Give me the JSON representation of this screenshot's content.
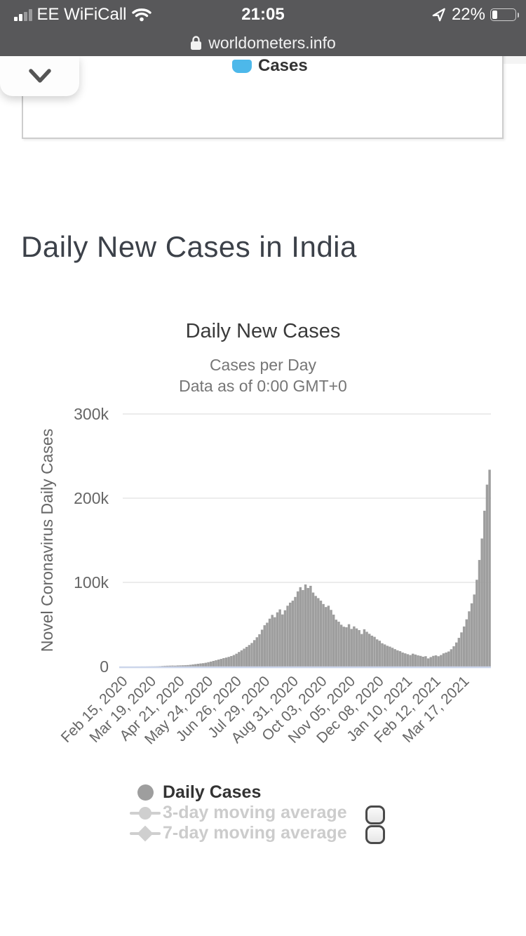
{
  "status_bar": {
    "carrier": "EE WiFiCall",
    "time": "21:05",
    "battery_text": "22%",
    "battery_level": 0.22,
    "bg_color": "#58585a"
  },
  "url_bar": {
    "domain": "worldometers.info"
  },
  "top_panel": {
    "legend_label": "Cases",
    "accent_color": "#4db8ea"
  },
  "page": {
    "heading": "Daily New Cases in India"
  },
  "chart_data": {
    "type": "bar",
    "title": "Daily New Cases",
    "subtitle1": "Cases per Day",
    "subtitle2": "Data as of 0:00 GMT+0",
    "ylabel": "Novel Coronavirus Daily Cases",
    "ylim": [
      0,
      300000
    ],
    "y_ticks": [
      {
        "label": "300k",
        "value": 300
      },
      {
        "label": "200k",
        "value": 200
      },
      {
        "label": "100k",
        "value": 100
      },
      {
        "label": "0",
        "value": 0
      }
    ],
    "x_tick_labels": [
      "Feb 15, 2020",
      "Mar 19, 2020",
      "Apr 21, 2020",
      "May 24, 2020",
      "Jun 26, 2020",
      "Jul 29, 2020",
      "Aug 31, 2020",
      "Oct 03, 2020",
      "Nov 05, 2020",
      "Dec 08, 2020",
      "Jan 10, 2021",
      "Feb 12, 2021",
      "Mar 17, 2021"
    ],
    "bar_color": "#9e9e9e",
    "grid_color": "#e6e6e6",
    "axis_line_color": "#ccd6eb",
    "label_color": "#666666",
    "series": [
      {
        "name": "Daily Cases",
        "units": "thousands of cases, one value per 3 days from Feb 15, 2020",
        "values_thousands": [
          0,
          0,
          0,
          0,
          0,
          0.05,
          0.05,
          0.1,
          0.1,
          0.15,
          0.2,
          0.25,
          0.3,
          0.4,
          0.5,
          0.7,
          0.9,
          1.0,
          1.1,
          1.2,
          1.1,
          1.3,
          1.4,
          1.5,
          1.6,
          1.8,
          2.1,
          2.5,
          2.9,
          3.3,
          3.7,
          4.0,
          4.5,
          5.2,
          5.9,
          6.7,
          7.5,
          8.3,
          9.1,
          10.0,
          10.7,
          11.5,
          12.5,
          13.7,
          15.3,
          17.3,
          19.3,
          21.3,
          23.4,
          25.6,
          28.0,
          31.4,
          34.8,
          38.4,
          43.8,
          49.1,
          52.1,
          56.9,
          61.4,
          58.6,
          64.4,
          67.9,
          61.9,
          66.9,
          72.3,
          75.9,
          78.3,
          82.7,
          89.3,
          94.3,
          90.9,
          97.5,
          93.3,
          95.9,
          87.9,
          83.9,
          81.3,
          78.3,
          74.3,
          70.7,
          72.3,
          67.3,
          61.7,
          55.7,
          53.3,
          49.7,
          47.3,
          46.7,
          50.3,
          44.7,
          47.7,
          45.3,
          43.3,
          38.7,
          44.3,
          41.3,
          38.9,
          36.7,
          35.3,
          32.3,
          30.7,
          27.7,
          26.3,
          24.7,
          23.7,
          22.3,
          20.7,
          19.3,
          18.3,
          16.7,
          15.7,
          14.7,
          13.7,
          15.3,
          14.3,
          13.3,
          12.7,
          11.7,
          12.3,
          9.7,
          11.3,
          12.7,
          13.3,
          12.3,
          13.7,
          15.7,
          16.7,
          17.9,
          20.6,
          24.1,
          28.6,
          34.1,
          40.6,
          47.6,
          56.1,
          65.6,
          75.1,
          85.6,
          103.1,
          126.6,
          152.1,
          185.1,
          216.1,
          233.8
        ]
      }
    ],
    "legend": [
      {
        "label": "Daily Cases",
        "marker": "circle",
        "active": true
      },
      {
        "label": "3-day moving average",
        "marker": "line-circle",
        "active": false
      },
      {
        "label": "7-day moving average",
        "marker": "line-diamond",
        "active": false
      }
    ],
    "legend_position": "bottom"
  }
}
